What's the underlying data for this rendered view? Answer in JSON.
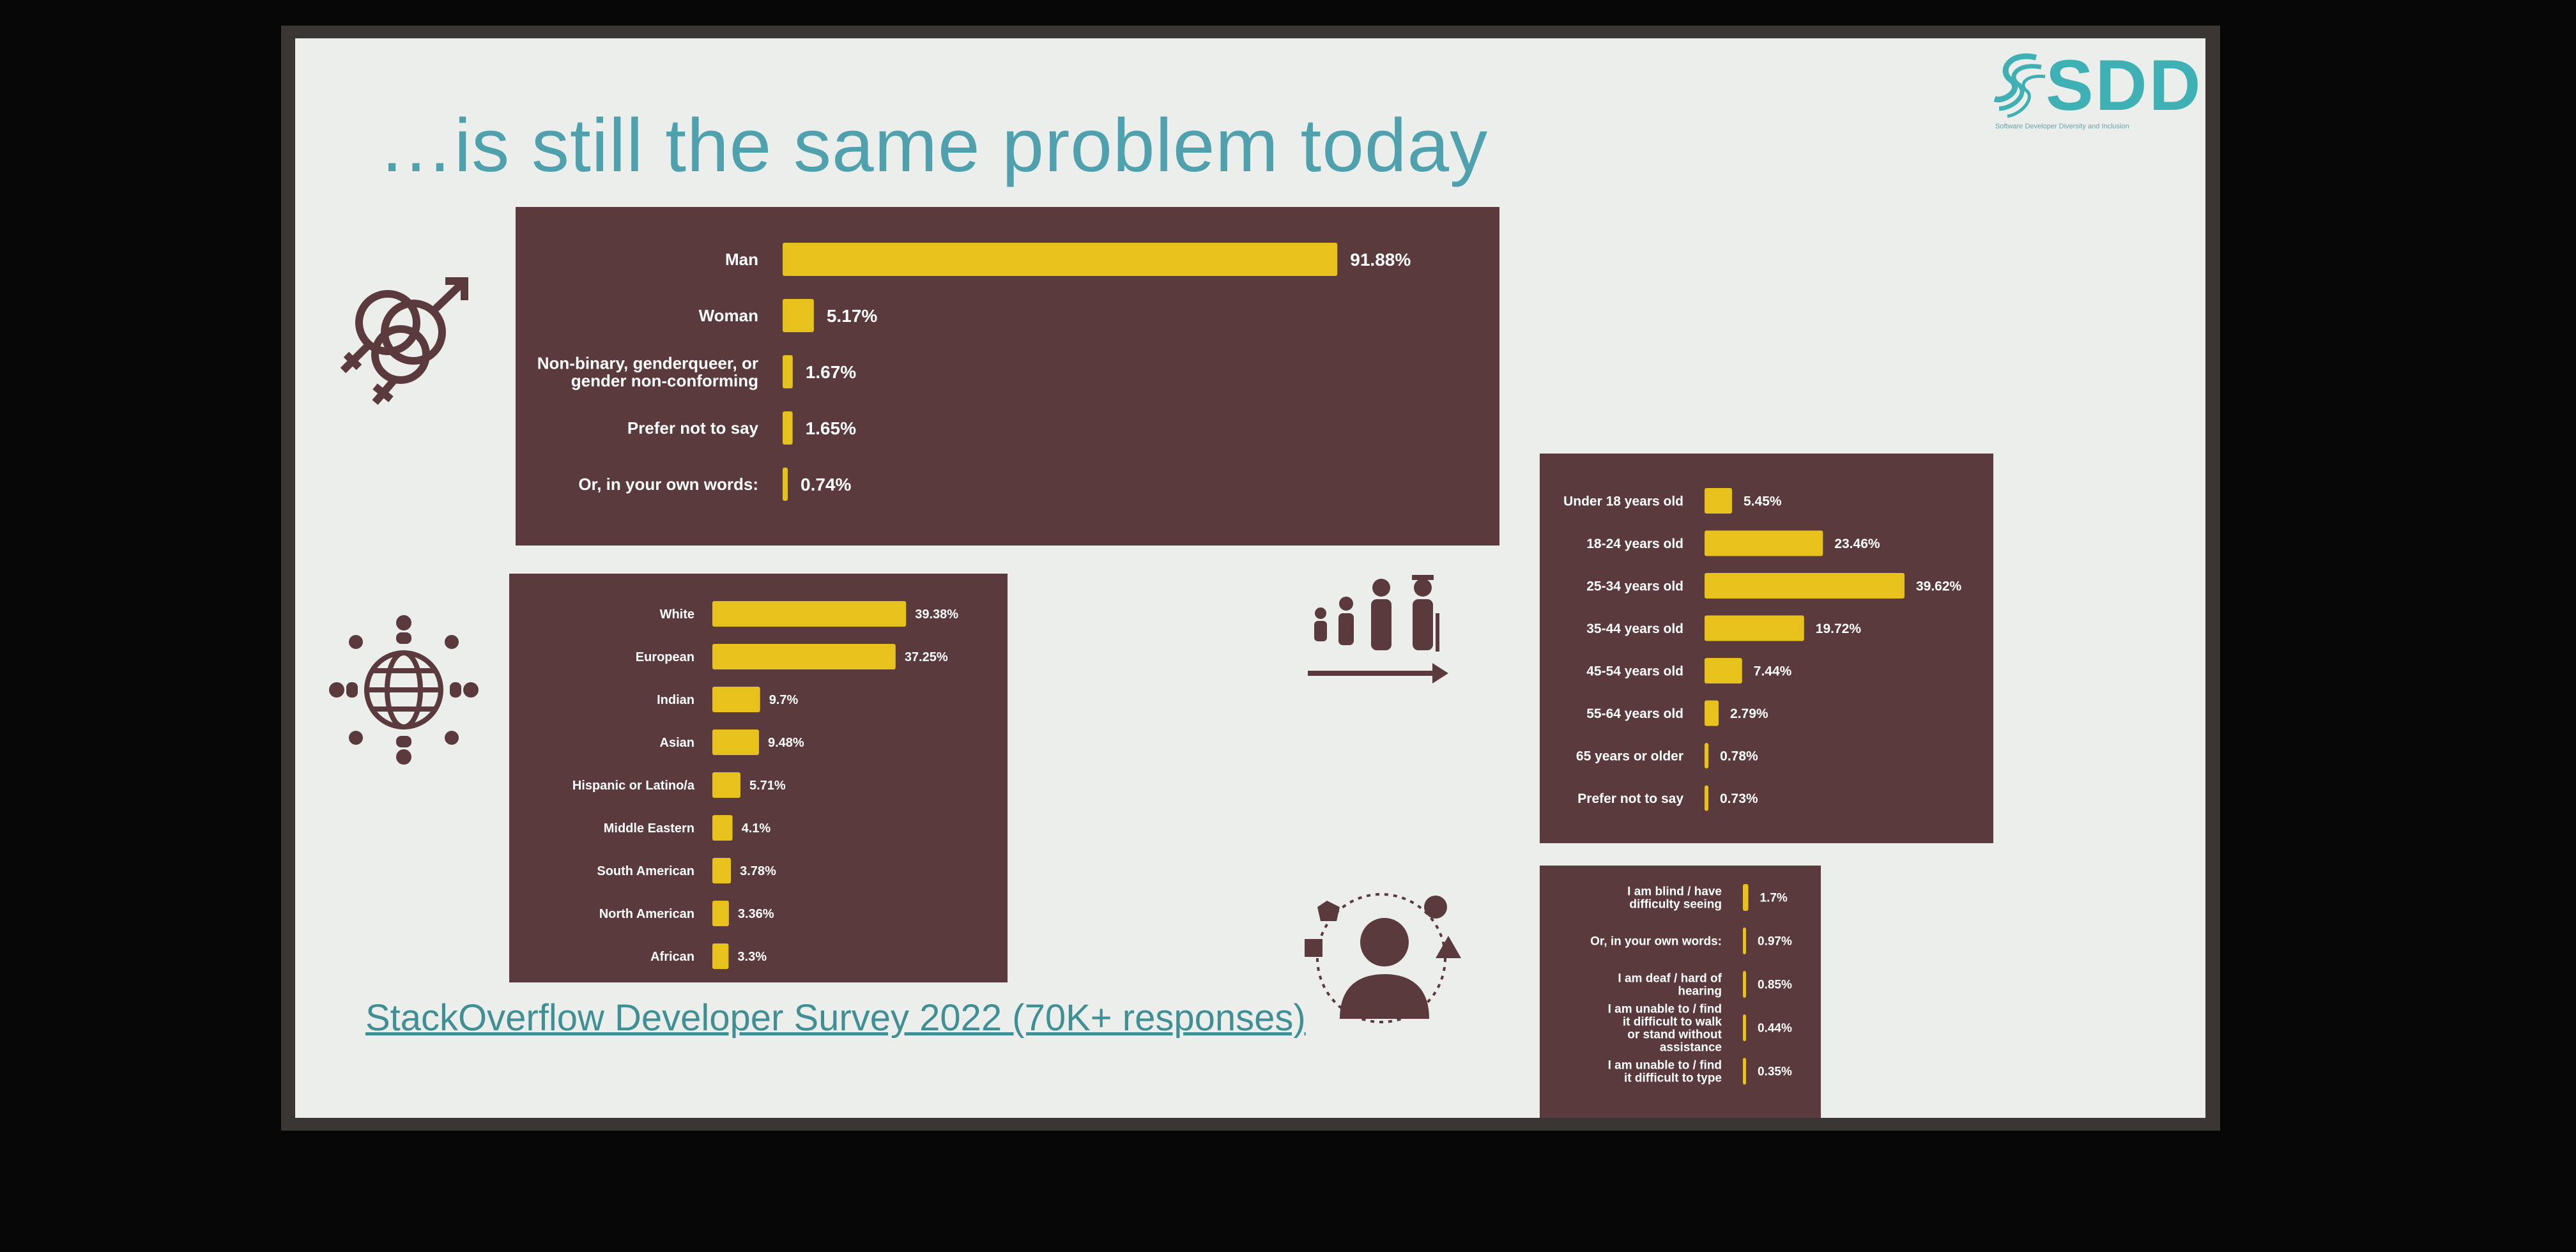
{
  "slide": {
    "title": "…is still the same problem today",
    "logo_text": "SDDI",
    "logo_tagline": "Software Developer Diversity and Inclusion",
    "source_link": "StackOverflow Developer Survey 2022 (70K+ responses)"
  },
  "colors": {
    "panel_bg": "#5a3a3d",
    "bar": "#e7c21d",
    "title": "#4fa1ad",
    "logo": "#3fb0b3",
    "icon": "#5a3a3d"
  },
  "icons": [
    "gender-icon",
    "globe-people-icon",
    "family-age-icon",
    "disability-person-icon",
    "sddi-logo-icon"
  ],
  "chart_data": [
    {
      "type": "bar",
      "orientation": "horizontal",
      "categories": [
        "Man",
        "Woman",
        "Non-binary, genderqueer, or gender non-conforming",
        "Prefer not to say",
        "Or, in your own words:"
      ],
      "values": [
        91.88,
        5.17,
        1.67,
        1.65,
        0.74
      ],
      "labels": [
        "91.88%",
        "5.17%",
        "1.67%",
        "1.65%",
        "0.74%"
      ],
      "xlim": [
        0,
        100
      ]
    },
    {
      "type": "bar",
      "orientation": "horizontal",
      "categories": [
        "White",
        "European",
        "Indian",
        "Asian",
        "Hispanic or Latino/a",
        "Middle Eastern",
        "South American",
        "North American",
        "African"
      ],
      "values": [
        39.38,
        37.25,
        9.7,
        9.48,
        5.71,
        4.1,
        3.78,
        3.36,
        3.3
      ],
      "labels": [
        "39.38%",
        "37.25%",
        "9.7%",
        "9.48%",
        "5.71%",
        "4.1%",
        "3.78%",
        "3.36%",
        "3.3%"
      ],
      "xlim": [
        0,
        40
      ]
    },
    {
      "type": "bar",
      "orientation": "horizontal",
      "categories": [
        "Under 18 years old",
        "18-24 years old",
        "25-34 years old",
        "35-44 years old",
        "45-54 years old",
        "55-64 years old",
        "65 years or older",
        "Prefer not to say"
      ],
      "values": [
        5.45,
        23.46,
        39.62,
        19.72,
        7.44,
        2.79,
        0.78,
        0.73
      ],
      "labels": [
        "5.45%",
        "23.46%",
        "39.62%",
        "19.72%",
        "7.44%",
        "2.79%",
        "0.78%",
        "0.73%"
      ],
      "xlim": [
        0,
        40
      ]
    },
    {
      "type": "bar",
      "orientation": "horizontal",
      "categories": [
        "I am blind / have difficulty seeing",
        "Or, in your own words:",
        "I am deaf / hard of hearing",
        "I am unable to / find it difficult to walk or stand without assistance",
        "I am unable to / find it difficult to type"
      ],
      "values": [
        1.7,
        0.97,
        0.85,
        0.44,
        0.35
      ],
      "labels": [
        "1.7%",
        "0.97%",
        "0.85%",
        "0.44%",
        "0.35%"
      ],
      "xlim": [
        0,
        100
      ]
    }
  ]
}
